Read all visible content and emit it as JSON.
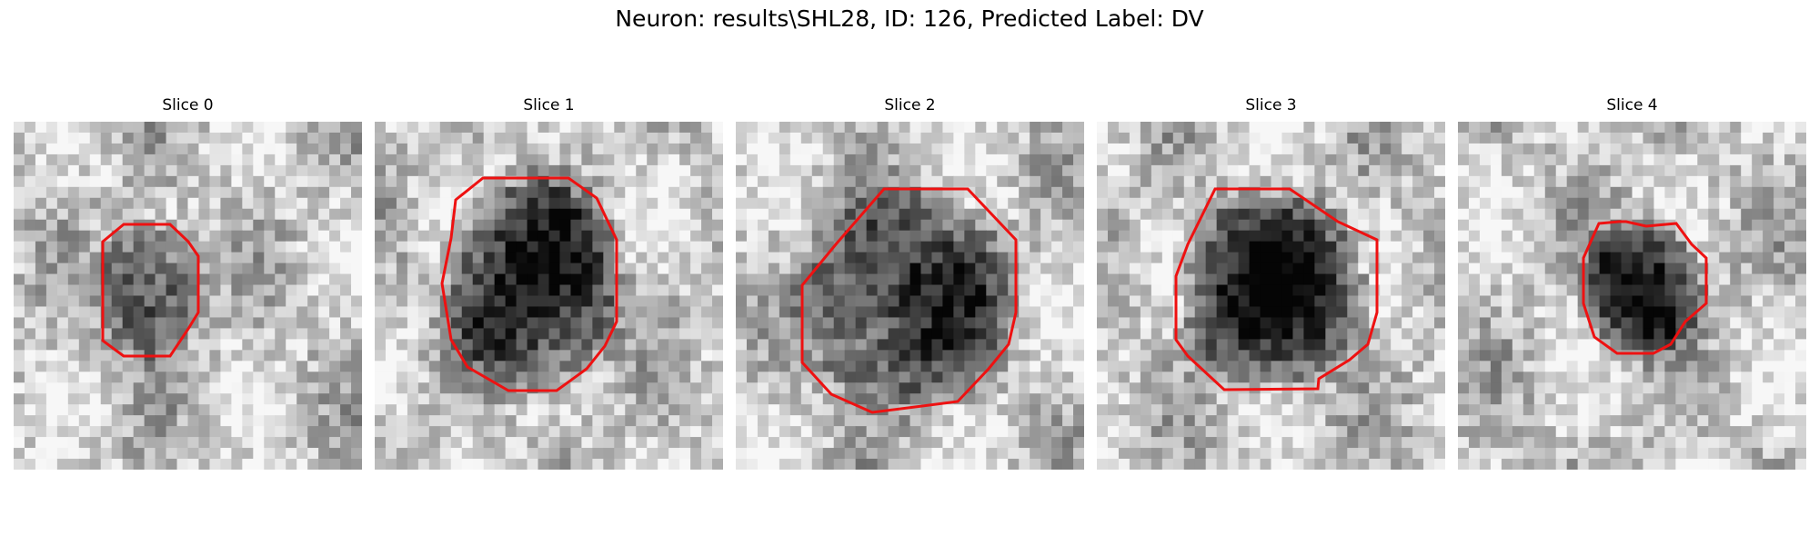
{
  "figure": {
    "title": "Neuron: results\\SHL28, ID: 126, Predicted Label: DV"
  },
  "panels": [
    {
      "title": "Slice 0"
    },
    {
      "title": "Slice 1"
    },
    {
      "title": "Slice 2"
    },
    {
      "title": "Slice 3"
    },
    {
      "title": "Slice 4"
    }
  ],
  "colors": {
    "outline": "#ee1111",
    "background": "#ffffff",
    "title_text": "#000000"
  }
}
